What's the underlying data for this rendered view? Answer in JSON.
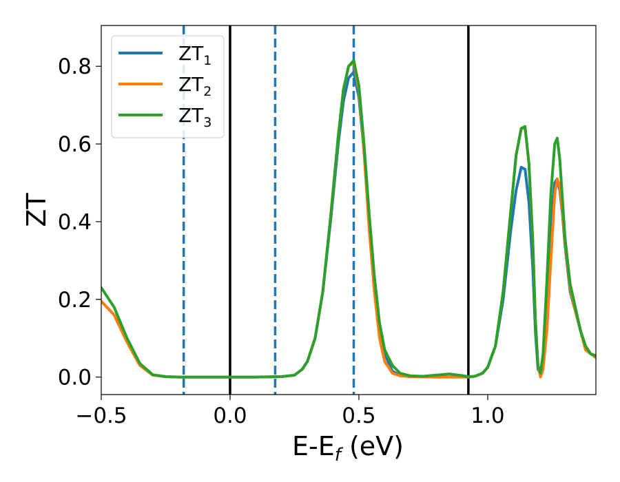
{
  "chart_data": {
    "type": "line",
    "xlabel_main": "E-E",
    "xlabel_sub": "f",
    "xlabel_tail": " (eV)",
    "ylabel": "ZT",
    "xlim": [
      -0.5,
      1.42
    ],
    "ylim": [
      -0.045,
      0.905
    ],
    "x_ticks": [
      -0.5,
      0.0,
      0.5,
      1.0
    ],
    "x_tick_labels": [
      "−0.5",
      "0.0",
      "0.5",
      "1.0"
    ],
    "y_ticks": [
      0.0,
      0.2,
      0.4,
      0.6,
      0.8
    ],
    "y_tick_labels": [
      "0.0",
      "0.2",
      "0.4",
      "0.6",
      "0.8"
    ],
    "grid": false,
    "legend_position": "top-left",
    "vlines_solid": [
      0.0,
      0.925
    ],
    "vlines_dashed": [
      -0.18,
      0.175,
      0.48
    ],
    "vline_solid_color": "#000000",
    "vline_dashed_color": "#1f77b4",
    "series": [
      {
        "name": "ZT",
        "name_sub": "1",
        "color": "#1f77b4",
        "x": [
          -0.5,
          -0.45,
          -0.4,
          -0.35,
          -0.3,
          -0.25,
          -0.2,
          -0.1,
          0.0,
          0.1,
          0.2,
          0.25,
          0.28,
          0.3,
          0.33,
          0.36,
          0.39,
          0.42,
          0.44,
          0.46,
          0.48,
          0.5,
          0.52,
          0.54,
          0.56,
          0.58,
          0.6,
          0.63,
          0.66,
          0.7,
          0.8,
          0.9,
          0.925,
          0.95,
          0.98,
          1.0,
          1.03,
          1.06,
          1.09,
          1.11,
          1.13,
          1.145,
          1.16,
          1.175,
          1.185,
          1.195,
          1.205,
          1.215,
          1.23,
          1.245,
          1.26,
          1.27,
          1.28,
          1.29,
          1.3,
          1.32,
          1.34,
          1.36,
          1.38,
          1.4,
          1.42
        ],
        "y": [
          0.195,
          0.16,
          0.09,
          0.03,
          0.005,
          0.001,
          0.0,
          0.0,
          0.0,
          0.0,
          0.001,
          0.005,
          0.02,
          0.04,
          0.1,
          0.22,
          0.4,
          0.6,
          0.71,
          0.77,
          0.785,
          0.72,
          0.58,
          0.4,
          0.25,
          0.13,
          0.06,
          0.015,
          0.004,
          0.001,
          0.0,
          0.0,
          0.0,
          0.002,
          0.01,
          0.025,
          0.08,
          0.2,
          0.38,
          0.48,
          0.54,
          0.535,
          0.45,
          0.28,
          0.12,
          0.02,
          0.01,
          0.05,
          0.2,
          0.38,
          0.5,
          0.51,
          0.48,
          0.42,
          0.34,
          0.22,
          0.17,
          0.12,
          0.07,
          0.06,
          0.05
        ]
      },
      {
        "name": "ZT",
        "name_sub": "2",
        "color": "#ff7f0e",
        "x": [
          -0.5,
          -0.45,
          -0.4,
          -0.35,
          -0.3,
          -0.25,
          -0.2,
          -0.1,
          0.0,
          0.1,
          0.2,
          0.25,
          0.28,
          0.3,
          0.33,
          0.36,
          0.39,
          0.42,
          0.44,
          0.46,
          0.48,
          0.5,
          0.52,
          0.54,
          0.56,
          0.58,
          0.6,
          0.63,
          0.66,
          0.7,
          0.8,
          0.9,
          0.925,
          0.95,
          0.98,
          1.0,
          1.03,
          1.06,
          1.09,
          1.11,
          1.13,
          1.145,
          1.16,
          1.175,
          1.185,
          1.195,
          1.205,
          1.215,
          1.23,
          1.245,
          1.26,
          1.27,
          1.28,
          1.29,
          1.3,
          1.32,
          1.34,
          1.36,
          1.38,
          1.4,
          1.42
        ],
        "y": [
          0.195,
          0.16,
          0.09,
          0.03,
          0.005,
          0.001,
          0.0,
          0.0,
          0.0,
          0.0,
          0.001,
          0.005,
          0.02,
          0.04,
          0.1,
          0.22,
          0.41,
          0.62,
          0.74,
          0.8,
          0.81,
          0.74,
          0.58,
          0.38,
          0.22,
          0.1,
          0.04,
          0.01,
          0.003,
          0.001,
          0.0,
          0.0,
          0.0,
          0.002,
          0.01,
          0.025,
          0.08,
          0.22,
          0.43,
          0.57,
          0.64,
          0.64,
          0.55,
          0.35,
          0.15,
          0.03,
          0.0,
          0.02,
          0.12,
          0.3,
          0.47,
          0.51,
          0.49,
          0.43,
          0.35,
          0.23,
          0.17,
          0.12,
          0.07,
          0.06,
          0.05
        ]
      },
      {
        "name": "ZT",
        "name_sub": "3",
        "color": "#2ca02c",
        "x": [
          -0.5,
          -0.45,
          -0.4,
          -0.35,
          -0.3,
          -0.25,
          -0.2,
          -0.1,
          0.0,
          0.1,
          0.2,
          0.25,
          0.28,
          0.3,
          0.33,
          0.36,
          0.39,
          0.42,
          0.44,
          0.46,
          0.48,
          0.5,
          0.52,
          0.54,
          0.56,
          0.58,
          0.6,
          0.63,
          0.66,
          0.7,
          0.75,
          0.8,
          0.85,
          0.9,
          0.925,
          0.95,
          0.98,
          1.0,
          1.03,
          1.06,
          1.09,
          1.11,
          1.13,
          1.145,
          1.16,
          1.175,
          1.185,
          1.195,
          1.205,
          1.215,
          1.23,
          1.245,
          1.26,
          1.27,
          1.28,
          1.29,
          1.3,
          1.32,
          1.34,
          1.36,
          1.38,
          1.4,
          1.42
        ],
        "y": [
          0.23,
          0.18,
          0.1,
          0.035,
          0.006,
          0.001,
          0.0,
          0.0,
          0.0,
          0.0,
          0.001,
          0.005,
          0.02,
          0.04,
          0.1,
          0.22,
          0.41,
          0.62,
          0.74,
          0.8,
          0.815,
          0.75,
          0.6,
          0.42,
          0.26,
          0.14,
          0.07,
          0.03,
          0.01,
          0.003,
          0.002,
          0.005,
          0.008,
          0.004,
          0.001,
          0.002,
          0.01,
          0.025,
          0.08,
          0.22,
          0.43,
          0.57,
          0.64,
          0.645,
          0.55,
          0.35,
          0.15,
          0.03,
          0.01,
          0.06,
          0.25,
          0.47,
          0.6,
          0.615,
          0.56,
          0.46,
          0.36,
          0.24,
          0.18,
          0.12,
          0.08,
          0.06,
          0.055
        ]
      }
    ]
  }
}
